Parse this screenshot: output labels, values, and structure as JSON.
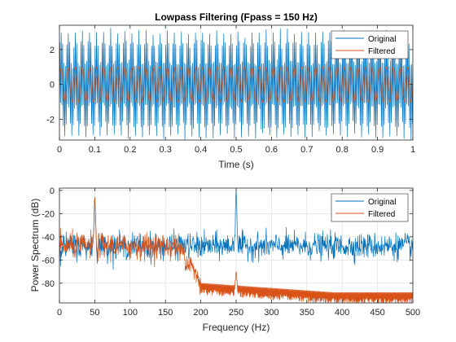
{
  "chart_data": [
    {
      "type": "line",
      "title": "Lowpass Filtering  (Fpass = 150 Hz)",
      "xlabel": "Time (s)",
      "ylabel": "",
      "xlim": [
        0,
        1
      ],
      "ylim": [
        -3.2,
        3.4
      ],
      "xticks": [
        0,
        0.1,
        0.2,
        0.3,
        0.4,
        0.5,
        0.6,
        0.7,
        0.8,
        0.9,
        1
      ],
      "xtick_labels": [
        "0",
        "0.1",
        "0.2",
        "0.3",
        "0.4",
        "0.5",
        "0.6",
        "0.7",
        "0.8",
        "0.9",
        "1"
      ],
      "yticks": [
        -2,
        0,
        2
      ],
      "ytick_labels": [
        "-2",
        "0",
        "2"
      ],
      "grid": true,
      "legend": "top-right",
      "series": [
        {
          "name": "Original",
          "color": "#0072BD",
          "signal": {
            "sample_rate_hz": 1000,
            "duration_s": 1,
            "components": [
              {
                "freq_hz": 50,
                "amplitude": 1
              },
              {
                "freq_hz": 250,
                "amplitude": 2
              }
            ],
            "noise_std": 0.1
          }
        },
        {
          "name": "Filtered",
          "color": "#D95319",
          "signal": {
            "sample_rate_hz": 1000,
            "duration_s": 1,
            "components": [
              {
                "freq_hz": 50,
                "amplitude": 1
              }
            ],
            "noise_std": 0.02
          }
        }
      ]
    },
    {
      "type": "line",
      "title": "",
      "xlabel": "Frequency (Hz)",
      "ylabel": "Power Spectrum (dB)",
      "xlim": [
        0,
        500
      ],
      "ylim": [
        -97,
        2
      ],
      "xticks": [
        0,
        50,
        100,
        150,
        200,
        250,
        300,
        350,
        400,
        450,
        500
      ],
      "xtick_labels": [
        "0",
        "50",
        "100",
        "150",
        "200",
        "250",
        "300",
        "350",
        "400",
        "450",
        "500"
      ],
      "yticks": [
        0,
        -20,
        -40,
        -60,
        -80
      ],
      "ytick_labels": [
        "0",
        "-20",
        "-40",
        "-60",
        "-80"
      ],
      "grid": true,
      "legend": "top-right",
      "series": [
        {
          "name": "Original",
          "color": "#0072BD",
          "spectrum": {
            "noise_floor_db": -48,
            "noise_spread_db": 6,
            "peaks": [
              {
                "freq_hz": 50,
                "level_db": -6
              },
              {
                "freq_hz": 250,
                "level_db": 0
              }
            ]
          }
        },
        {
          "name": "Filtered",
          "color": "#D95319",
          "spectrum": {
            "noise_floor_db": -48,
            "noise_spread_db": 6,
            "passband_edge_hz": 170,
            "stopband_start_hz": 200,
            "stopband_level_db": [
              -80,
              -88
            ],
            "stopband_ripple_db": 10,
            "peaks": [
              {
                "freq_hz": 50,
                "level_db": -6
              },
              {
                "freq_hz": 250,
                "level_db": -70
              }
            ]
          }
        }
      ]
    }
  ]
}
